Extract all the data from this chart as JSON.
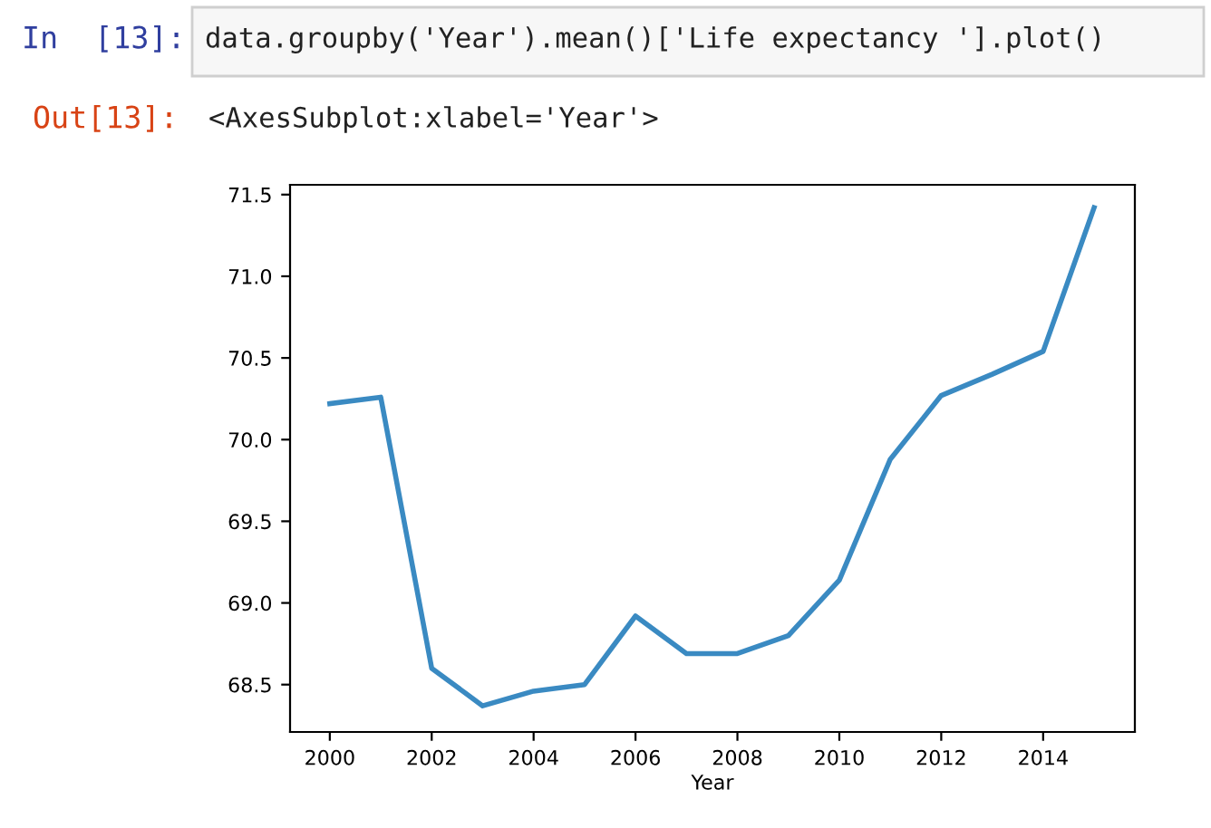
{
  "chart_data": {
    "type": "line",
    "xlabel": "Year",
    "x": [
      2000,
      2001,
      2002,
      2003,
      2004,
      2005,
      2006,
      2007,
      2008,
      2009,
      2010,
      2011,
      2012,
      2013,
      2014,
      2015
    ],
    "series": [
      {
        "color": "#3a8ac2",
        "values": [
          70.22,
          70.26,
          68.6,
          68.37,
          68.46,
          68.5,
          68.92,
          68.69,
          68.69,
          68.8,
          69.14,
          69.88,
          70.27,
          70.4,
          70.54,
          71.42
        ]
      }
    ],
    "xlim": [
      1999.22,
      2015.8
    ],
    "xticks": [
      2000,
      2002,
      2004,
      2006,
      2008,
      2010,
      2012,
      2014
    ],
    "ylim": [
      68.21,
      71.56
    ],
    "yticks": [
      {
        "value": 68.5,
        "label": "68.5"
      },
      {
        "value": 69.0,
        "label": "69.0"
      },
      {
        "value": 69.5,
        "label": "69.5"
      },
      {
        "value": 70.0,
        "label": "70.0"
      },
      {
        "value": 70.5,
        "label": "70.5"
      },
      {
        "value": 71.0,
        "label": "71.0"
      },
      {
        "value": 71.5,
        "label": "71.5"
      }
    ],
    "grid": false,
    "legend": false,
    "annotations": [
      "In  [13]:",
      "data.groupby('Year').mean()['Life expectancy '].plot()",
      "Out[13]:",
      "<AxesSubplot:xlabel='Year'>"
    ]
  }
}
